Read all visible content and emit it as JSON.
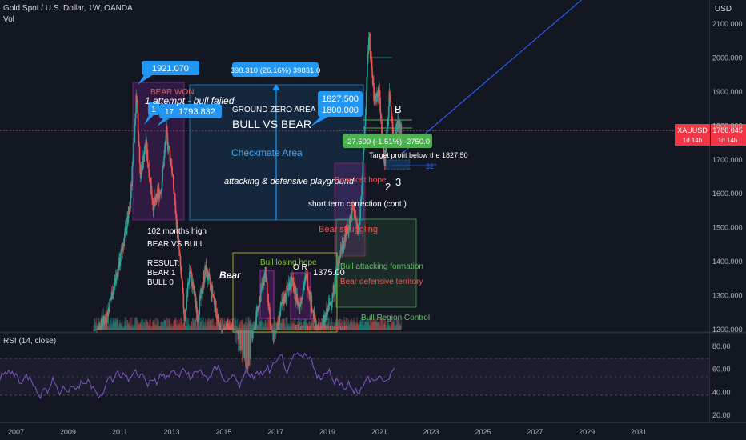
{
  "header": {
    "title": "Gold Spot / U.S. Dollar, 1W, OANDA",
    "vol": "Vol",
    "rsi_label": "RSI (14, close)",
    "currency": "USD"
  },
  "price_tag": {
    "symbol": "XAUUSD",
    "price": "1786.045",
    "countdown": "1d 14h",
    "color": "#f23645"
  },
  "colors": {
    "background": "#131722",
    "candle_up": "#26a69a",
    "candle_down": "#ef5350",
    "rsi_line": "#7e57c2",
    "callout": "#2196f3",
    "trendline": "#2962ff",
    "green_box": "#4caf50"
  },
  "chart_data": {
    "type": "candlestick",
    "symbol": "Gold Spot / U.S. Dollar",
    "timeframe": "1W",
    "current_price": 1786.045,
    "y_axis_ticks": [
      "2100.000",
      "2000.000",
      "1900.000",
      "1800.000",
      "1700.000",
      "1600.000",
      "1500.000",
      "1400.000",
      "1300.000",
      "1200.000"
    ],
    "x_axis_ticks": [
      "2007",
      "2009",
      "2011",
      "2013",
      "2015",
      "2017",
      "2019",
      "2021",
      "2023",
      "2025",
      "2027",
      "2029",
      "2031"
    ],
    "rsi_ticks": [
      "80.00",
      "60.00",
      "40.00",
      "20.00"
    ],
    "price_path": [
      {
        "x": 2010.0,
        "y": 1180
      },
      {
        "x": 2010.5,
        "y": 1240
      },
      {
        "x": 2011.0,
        "y": 1400
      },
      {
        "x": 2011.4,
        "y": 1560
      },
      {
        "x": 2011.65,
        "y": 1900
      },
      {
        "x": 2011.8,
        "y": 1650
      },
      {
        "x": 2012.0,
        "y": 1750
      },
      {
        "x": 2012.3,
        "y": 1560
      },
      {
        "x": 2012.6,
        "y": 1620
      },
      {
        "x": 2012.8,
        "y": 1780
      },
      {
        "x": 2013.0,
        "y": 1680
      },
      {
        "x": 2013.3,
        "y": 1420
      },
      {
        "x": 2013.5,
        "y": 1230
      },
      {
        "x": 2013.7,
        "y": 1380
      },
      {
        "x": 2014.0,
        "y": 1240
      },
      {
        "x": 2014.3,
        "y": 1380
      },
      {
        "x": 2014.6,
        "y": 1300
      },
      {
        "x": 2014.9,
        "y": 1180
      },
      {
        "x": 2015.3,
        "y": 1210
      },
      {
        "x": 2015.7,
        "y": 1100
      },
      {
        "x": 2015.95,
        "y": 1060
      },
      {
        "x": 2016.3,
        "y": 1260
      },
      {
        "x": 2016.6,
        "y": 1370
      },
      {
        "x": 2016.9,
        "y": 1130
      },
      {
        "x": 2017.2,
        "y": 1260
      },
      {
        "x": 2017.6,
        "y": 1350
      },
      {
        "x": 2017.9,
        "y": 1270
      },
      {
        "x": 2018.2,
        "y": 1360
      },
      {
        "x": 2018.6,
        "y": 1180
      },
      {
        "x": 2018.9,
        "y": 1230
      },
      {
        "x": 2019.2,
        "y": 1300
      },
      {
        "x": 2019.5,
        "y": 1430
      },
      {
        "x": 2019.8,
        "y": 1500
      },
      {
        "x": 2020.0,
        "y": 1560
      },
      {
        "x": 2020.2,
        "y": 1480
      },
      {
        "x": 2020.4,
        "y": 1720
      },
      {
        "x": 2020.6,
        "y": 2070
      },
      {
        "x": 2020.8,
        "y": 1880
      },
      {
        "x": 2021.0,
        "y": 1900
      },
      {
        "x": 2021.2,
        "y": 1680
      },
      {
        "x": 2021.4,
        "y": 1900
      },
      {
        "x": 2021.55,
        "y": 1760
      },
      {
        "x": 2021.7,
        "y": 1810
      },
      {
        "x": 2021.85,
        "y": 1786
      }
    ],
    "trendline": {
      "from": {
        "x": 2021.9,
        "y": 1720
      },
      "to": {
        "x": 2030.0,
        "y": 2250
      }
    },
    "horizontal_line": {
      "y": 1786.045
    }
  },
  "annotations": {
    "callout_1921": "1921.070",
    "callout_1793": "1793.832",
    "callout_1_a": "1",
    "callout_1_b": "17",
    "measure": "398.310 (26.16%) 39831.0",
    "callout_1827": "1827.500",
    "callout_1800": "1800.000",
    "green_measure": "-27.500 (-1.51%) -2750.0",
    "target_profit": "Target profit below the 1827.50",
    "angle": "32°",
    "bear_won": "BEAR WON",
    "attempt": "1 attempt - bull failed",
    "ground_zero": "GROUND ZERO AREA",
    "bull_vs_bear": "BULL VS BEAR",
    "checkmate": "Checkmate Area",
    "playground": "attacking & defensive playground",
    "lost_hope": "Bear lost hope",
    "short_term": "short term correction (cont.)",
    "bear_struggling": "Bear struggling",
    "months_high": "102 months high",
    "bear_vs_bull": "BEAR VS BULL",
    "result": "RESULT:",
    "bear_1": "BEAR 1",
    "bull_0": "BULL 0",
    "bear_italic": "Bear",
    "bull_losing_hope": "Bull losing hope",
    "o_r": "O   R",
    "level_1375": "1375.00",
    "bull_attacking": "Bull attacking formation",
    "bear_defensive_territory": "Bear defensive territory",
    "bull_region": "Bull Region Control",
    "bear_defensive": "Bear defensive",
    "num_B": "B",
    "num_2": "2",
    "num_3": "3"
  }
}
